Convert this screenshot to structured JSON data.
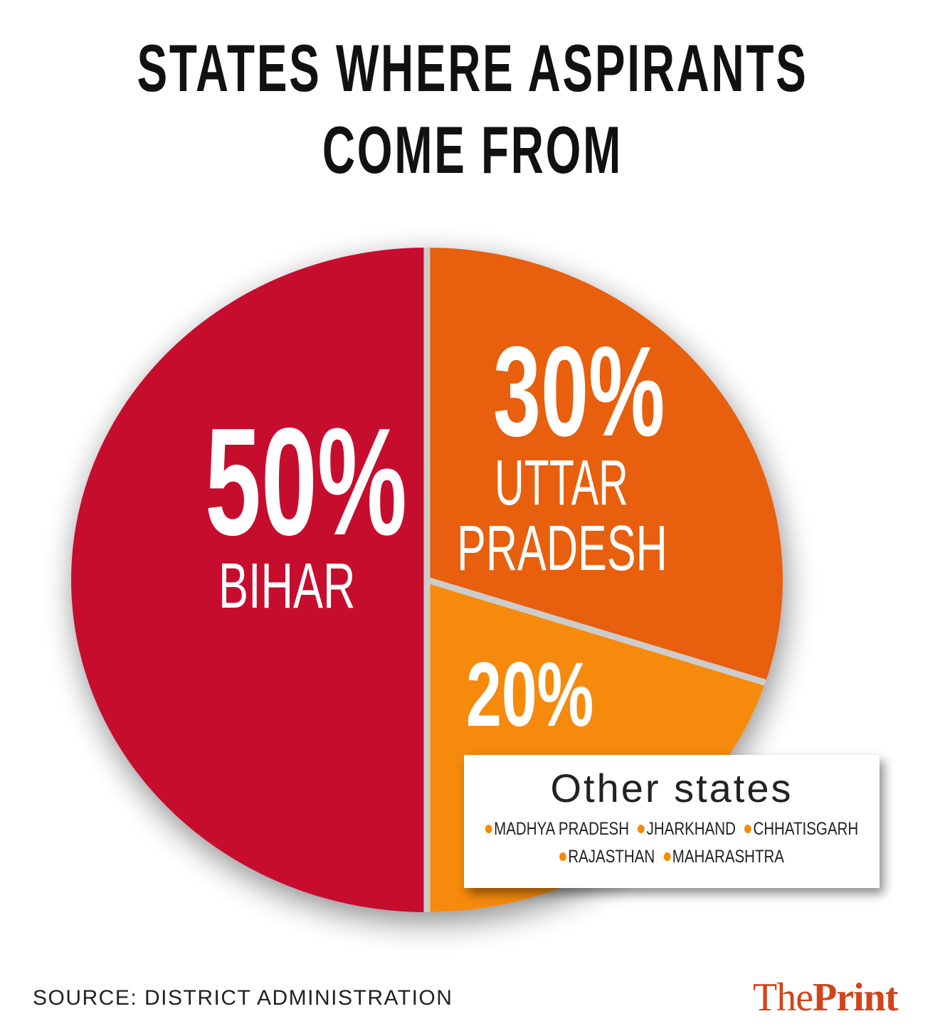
{
  "chart_data": {
    "type": "pie",
    "title": [
      "STATES WHERE ASPIRANTS",
      "COME FROM"
    ],
    "slices": [
      {
        "label": "BIHAR",
        "label_lines": [
          "BIHAR"
        ],
        "value": 50,
        "value_label": "50%",
        "color": "#C70D2D"
      },
      {
        "label": "UTTAR PRADESH",
        "label_lines": [
          "UTTAR",
          "PRADESH"
        ],
        "value": 30,
        "value_label": "30%",
        "color": "#E85E0B"
      },
      {
        "label": "Other states",
        "value": 20,
        "value_label": "20%",
        "color": "#F68A07"
      }
    ],
    "other_states": {
      "title": "Other states",
      "rows": [
        [
          "MADHYA PRADESH",
          "JHARKHAND",
          "CHHATISGARH"
        ],
        [
          "RAJASTHAN",
          "MAHARASHTRA"
        ]
      ]
    },
    "separator_color": "#CCCCCC"
  },
  "source": "SOURCE: DISTRICT ADMINISTRATION",
  "logo": {
    "the": "The",
    "print": "Print",
    "color": "#D2431A"
  }
}
